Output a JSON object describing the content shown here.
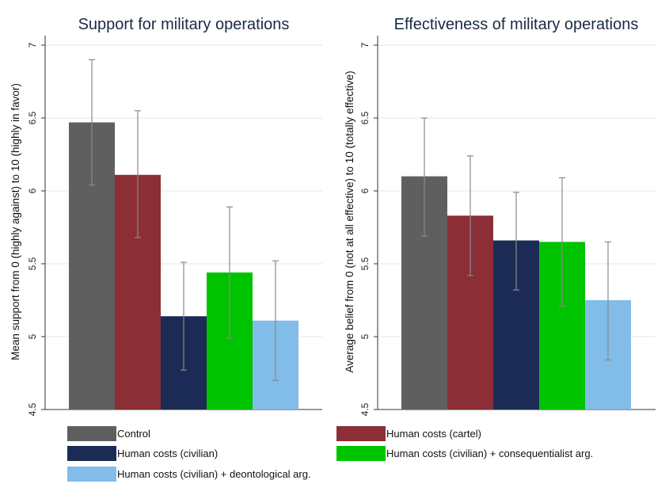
{
  "chart_data": [
    {
      "type": "bar",
      "title": "Support for military operations",
      "xlabel": "",
      "ylabel": "Mean support from 0 (highly against) to 10 (highly in favor)",
      "ylim": [
        4.5,
        7
      ],
      "yticks": [
        "4.5",
        "5",
        "5.5",
        "6",
        "6.5",
        "7"
      ],
      "grid": true,
      "error_bars": true,
      "series": [
        {
          "name": "Control",
          "value": 6.47,
          "ci": [
            6.04,
            6.9
          ]
        },
        {
          "name": "Human costs (cartel)",
          "value": 6.11,
          "ci": [
            5.68,
            6.55
          ]
        },
        {
          "name": "Human costs (civilian)",
          "value": 5.14,
          "ci": [
            4.77,
            5.51
          ]
        },
        {
          "name": "Human costs (civilian) + consequentialist arg.",
          "value": 5.44,
          "ci": [
            4.99,
            5.89
          ]
        },
        {
          "name": "Human costs (civilian) + deontological arg.",
          "value": 5.11,
          "ci": [
            4.7,
            5.52
          ]
        }
      ]
    },
    {
      "type": "bar",
      "title": "Effectiveness of military operations",
      "xlabel": "",
      "ylabel": "Average belief from 0 (not at all effective) to 10 (totally effective)",
      "ylim": [
        4.5,
        7
      ],
      "yticks": [
        "4.5",
        "5",
        "5.5",
        "6",
        "6.5",
        "7"
      ],
      "grid": true,
      "error_bars": true,
      "series": [
        {
          "name": "Control",
          "value": 6.1,
          "ci": [
            5.69,
            6.5
          ]
        },
        {
          "name": "Human costs (cartel)",
          "value": 5.83,
          "ci": [
            5.42,
            6.24
          ]
        },
        {
          "name": "Human costs (civilian)",
          "value": 5.66,
          "ci": [
            5.32,
            5.99
          ]
        },
        {
          "name": "Human costs (civilian) + consequentialist arg.",
          "value": 5.65,
          "ci": [
            5.21,
            6.09
          ]
        },
        {
          "name": "Human costs (civilian) + deontological arg.",
          "value": 5.25,
          "ci": [
            4.84,
            5.65
          ]
        }
      ]
    }
  ],
  "colors": {
    "Control": "#5f5f5f",
    "Human costs (cartel)": "#8b2e36",
    "Human costs (civilian)": "#1c2b55",
    "Human costs (civilian) + consequentialist arg.": "#00c300",
    "Human costs (civilian) + deontological arg.": "#82bce8",
    "error_bar": "#8a8a8a",
    "grid": "#e6e6e6",
    "title": "#1a2a44"
  },
  "legend": {
    "placement": "bottom",
    "entries": [
      "Control",
      "Human costs (cartel)",
      "Human costs (civilian)",
      "Human costs (civilian) + consequentialist arg.",
      "Human costs (civilian) + deontological arg."
    ]
  }
}
